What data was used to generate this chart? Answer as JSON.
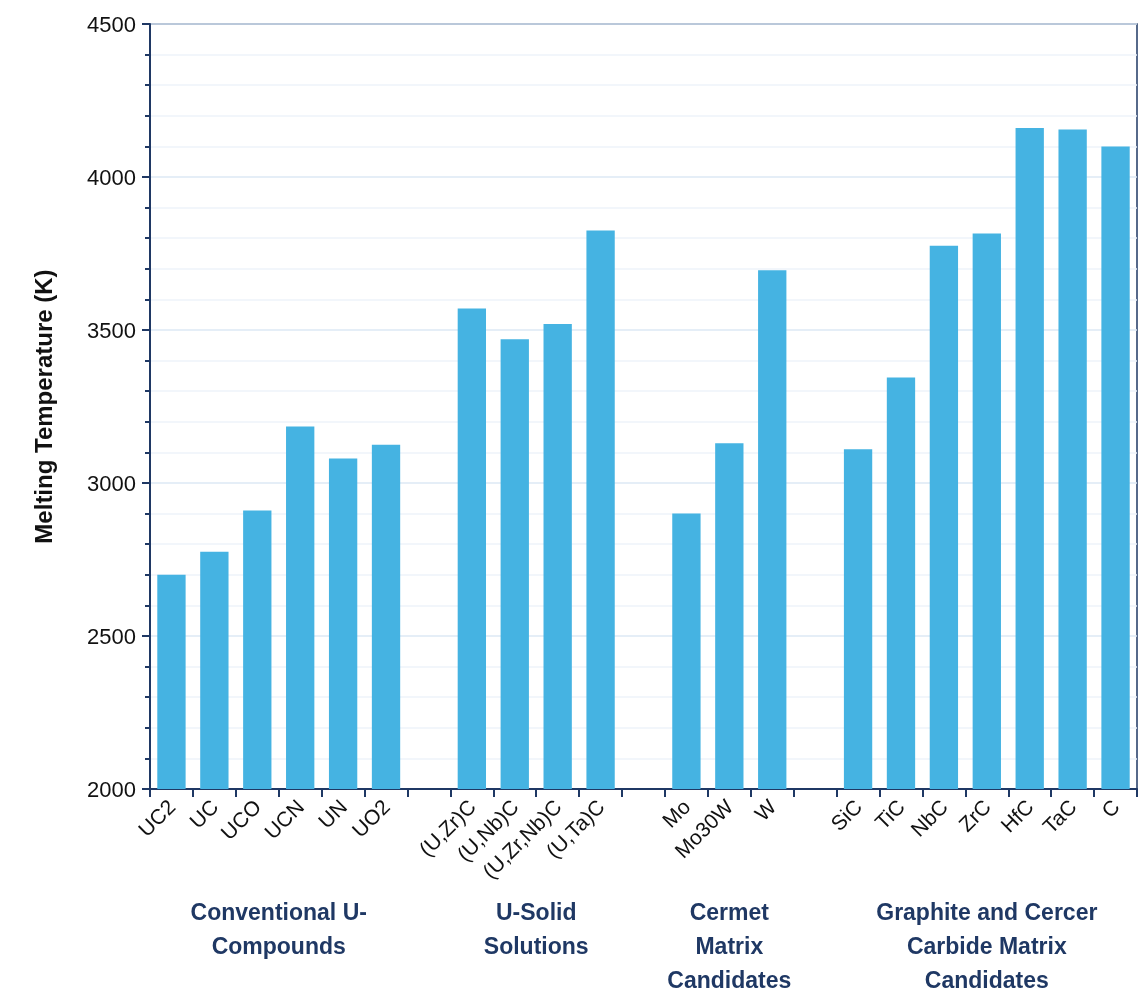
{
  "chart_data": {
    "type": "bar",
    "ylabel": "Melting Temperature (K)",
    "categories": [
      "UC2",
      "UC",
      "UCO",
      "UCN",
      "UN",
      "UO2",
      null,
      "(U,Zr)C",
      "(U,Nb)C",
      "(U,Zr,Nb)C",
      "(U,Ta)C",
      null,
      "Mo",
      "Mo30W",
      "W",
      null,
      "SiC",
      "TiC",
      "NbC",
      "ZrC",
      "HfC",
      "TaC",
      "C"
    ],
    "values": [
      2700,
      2775,
      2910,
      3185,
      3080,
      3125,
      null,
      3570,
      3470,
      3520,
      3825,
      null,
      2900,
      3130,
      3695,
      null,
      3110,
      3345,
      3775,
      3815,
      4160,
      4155,
      4100
    ],
    "color": "#45b3e2",
    "ylim": [
      2000,
      4500
    ],
    "yticks": [
      2000,
      2500,
      3000,
      3500,
      4000,
      4500
    ],
    "grid": "y",
    "annotations": [
      "Conventional U-\nCompounds",
      "U-Solid\nSolutions",
      "Cermet\nMatrix\nCandidates",
      "Graphite and Cercer\nCarbide Matrix\nCandidates"
    ]
  }
}
